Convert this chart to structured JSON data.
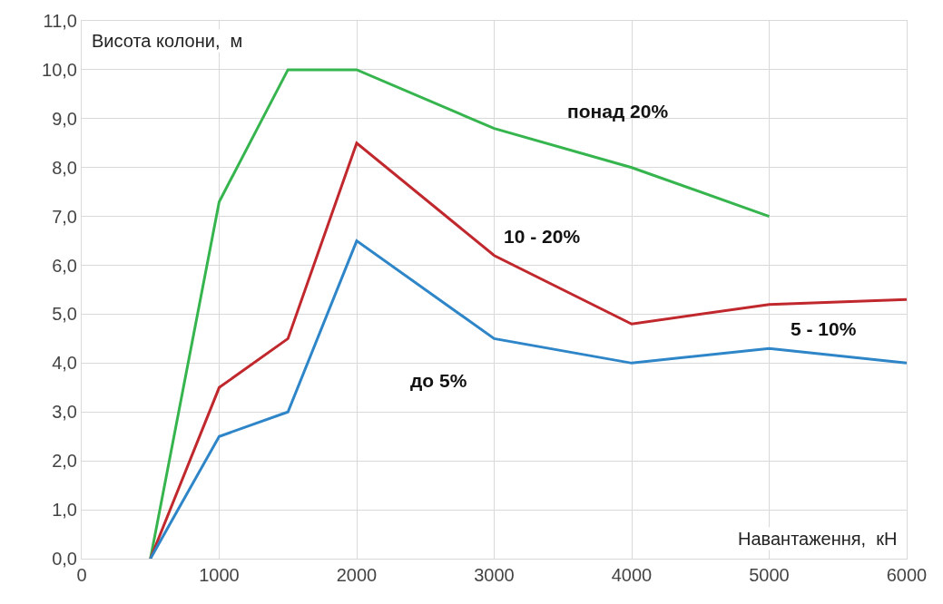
{
  "chart_data": {
    "type": "line",
    "xlabel": "Навантаження,  кН",
    "ylabel": "Висота колони,  м",
    "xlim": [
      0,
      6000
    ],
    "xticks": [
      0,
      1000,
      2000,
      3000,
      4000,
      5000,
      6000
    ],
    "ylim": [
      0,
      11
    ],
    "yticks": [
      {
        "value": 0,
        "label": "0,0"
      },
      {
        "value": 1,
        "label": "1,0"
      },
      {
        "value": 2,
        "label": "2,0"
      },
      {
        "value": 3,
        "label": "3,0"
      },
      {
        "value": 4,
        "label": "4,0"
      },
      {
        "value": 5,
        "label": "5,0"
      },
      {
        "value": 6,
        "label": "6,0"
      },
      {
        "value": 7,
        "label": "7,0"
      },
      {
        "value": 8,
        "label": "8,0"
      },
      {
        "value": 9,
        "label": "9,0"
      },
      {
        "value": 10,
        "label": "10,0"
      },
      {
        "value": 11,
        "label": "11,0"
      }
    ],
    "grid": true,
    "marker": "none",
    "line_style": "solid",
    "series": [
      {
        "color": "#36b54e",
        "x": [
          500,
          1000,
          1500,
          2000,
          3000,
          4000,
          5000
        ],
        "values": [
          0,
          7.3,
          10,
          10,
          8.8,
          8.0,
          7.0
        ]
      },
      {
        "color": "#c0282d",
        "x": [
          500,
          1000,
          1500,
          2000,
          3000,
          4000,
          5000,
          6000
        ],
        "values": [
          0,
          3.5,
          4.5,
          8.5,
          6.2,
          4.8,
          5.2,
          5.3
        ]
      },
      {
        "color": "#2e86c8",
        "x": [
          500,
          1000,
          1500,
          2000,
          3000,
          4000,
          5000,
          6000
        ],
        "values": [
          0,
          2.5,
          3.0,
          6.5,
          4.5,
          4.0,
          4.3,
          4.0
        ]
      }
    ],
    "annotations": [
      "понад 20%",
      "10 - 20%",
      "5 - 10%",
      "до 5%"
    ]
  }
}
